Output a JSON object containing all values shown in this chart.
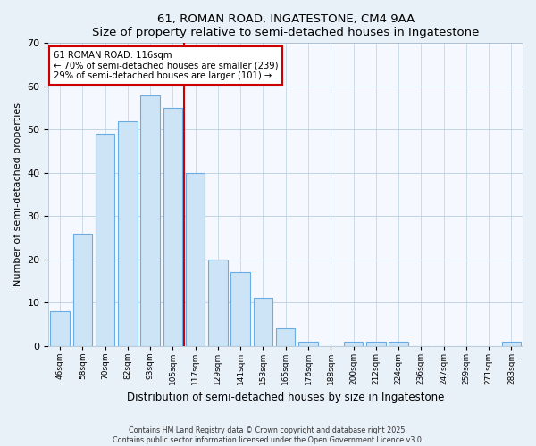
{
  "title": "61, ROMAN ROAD, INGATESTONE, CM4 9AA",
  "subtitle": "Size of property relative to semi-detached houses in Ingatestone",
  "xlabel": "Distribution of semi-detached houses by size in Ingatestone",
  "ylabel": "Number of semi-detached properties",
  "bin_labels": [
    "46sqm",
    "58sqm",
    "70sqm",
    "82sqm",
    "93sqm",
    "105sqm",
    "117sqm",
    "129sqm",
    "141sqm",
    "153sqm",
    "165sqm",
    "176sqm",
    "188sqm",
    "200sqm",
    "212sqm",
    "224sqm",
    "236sqm",
    "247sqm",
    "259sqm",
    "271sqm",
    "283sqm"
  ],
  "bar_heights": [
    8,
    26,
    49,
    52,
    58,
    55,
    40,
    20,
    17,
    11,
    4,
    1,
    0,
    1,
    1,
    1,
    0,
    0,
    0,
    0,
    1
  ],
  "bar_color": "#cce4f5",
  "bar_edge_color": "#6aace4",
  "vline_x": 5.5,
  "vline_color": "#cc0000",
  "annotation_title": "61 ROMAN ROAD: 116sqm",
  "annotation_line1": "← 70% of semi-detached houses are smaller (239)",
  "annotation_line2": "29% of semi-detached houses are larger (101) →",
  "ylim": [
    0,
    70
  ],
  "yticks": [
    0,
    10,
    20,
    30,
    40,
    50,
    60,
    70
  ],
  "footer1": "Contains HM Land Registry data © Crown copyright and database right 2025.",
  "footer2": "Contains public sector information licensed under the Open Government Licence v3.0.",
  "bg_color": "#e8f0f8",
  "plot_bg_color": "#f5f9ff"
}
